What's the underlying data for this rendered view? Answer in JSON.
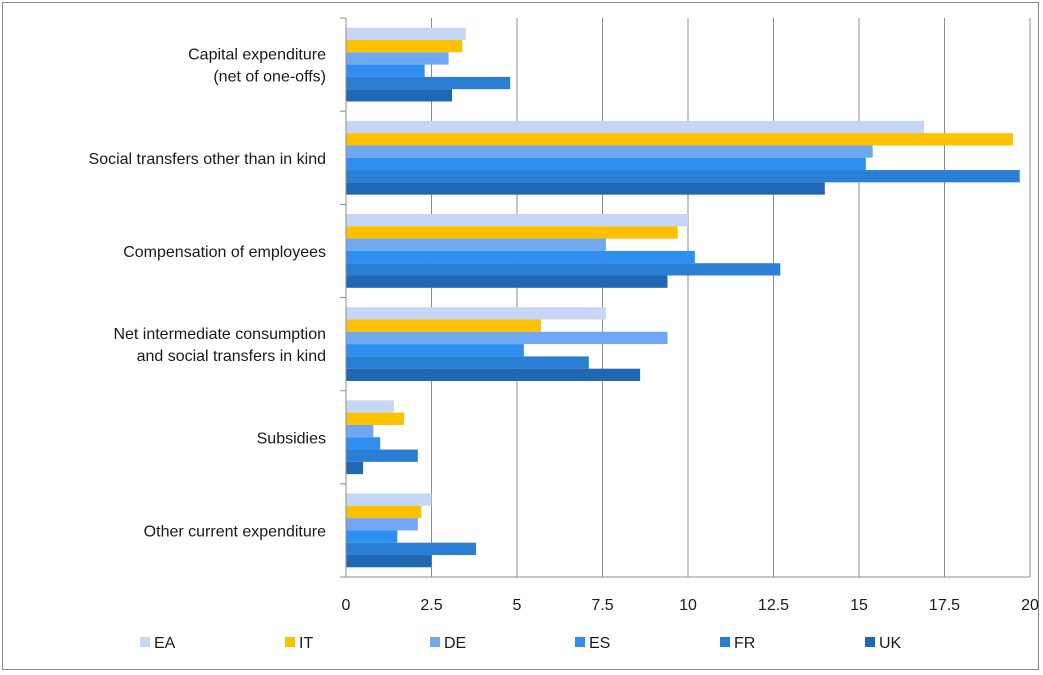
{
  "chart_data": {
    "type": "bar",
    "orientation": "horizontal",
    "categories": [
      [
        "Capital expenditure",
        "(net of one-offs)"
      ],
      [
        "Social transfers other than in kind"
      ],
      [
        "Compensation of employees"
      ],
      [
        "Net intermediate consumption",
        "and social transfers in kind"
      ],
      [
        "Subsidies"
      ],
      [
        "Other current expenditure"
      ]
    ],
    "series": [
      {
        "name": "EA",
        "color": "#c5d6f7",
        "values": [
          3.5,
          16.9,
          10.0,
          7.6,
          1.4,
          2.5
        ]
      },
      {
        "name": "IT",
        "color": "#ffc000",
        "values": [
          3.4,
          19.5,
          9.7,
          5.7,
          1.7,
          2.2
        ]
      },
      {
        "name": "DE",
        "color": "#6fa8f0",
        "values": [
          3.0,
          15.4,
          7.6,
          9.4,
          0.8,
          2.1
        ]
      },
      {
        "name": "ES",
        "color": "#2f8ff0",
        "values": [
          2.3,
          15.2,
          10.2,
          5.2,
          1.0,
          1.5
        ]
      },
      {
        "name": "FR",
        "color": "#2a7fd4",
        "values": [
          4.8,
          19.7,
          12.7,
          7.1,
          2.1,
          3.8
        ]
      },
      {
        "name": "UK",
        "color": "#2068b4",
        "values": [
          3.1,
          14.0,
          9.4,
          8.6,
          0.5,
          2.5
        ]
      }
    ],
    "xlim": [
      0,
      20
    ],
    "xticks": [
      "0",
      "2.5",
      "5",
      "7.5",
      "10",
      "12.5",
      "15",
      "17.5",
      "20"
    ],
    "grid": "vertical",
    "legend_position": "bottom",
    "title": "",
    "xlabel": "",
    "ylabel": ""
  }
}
